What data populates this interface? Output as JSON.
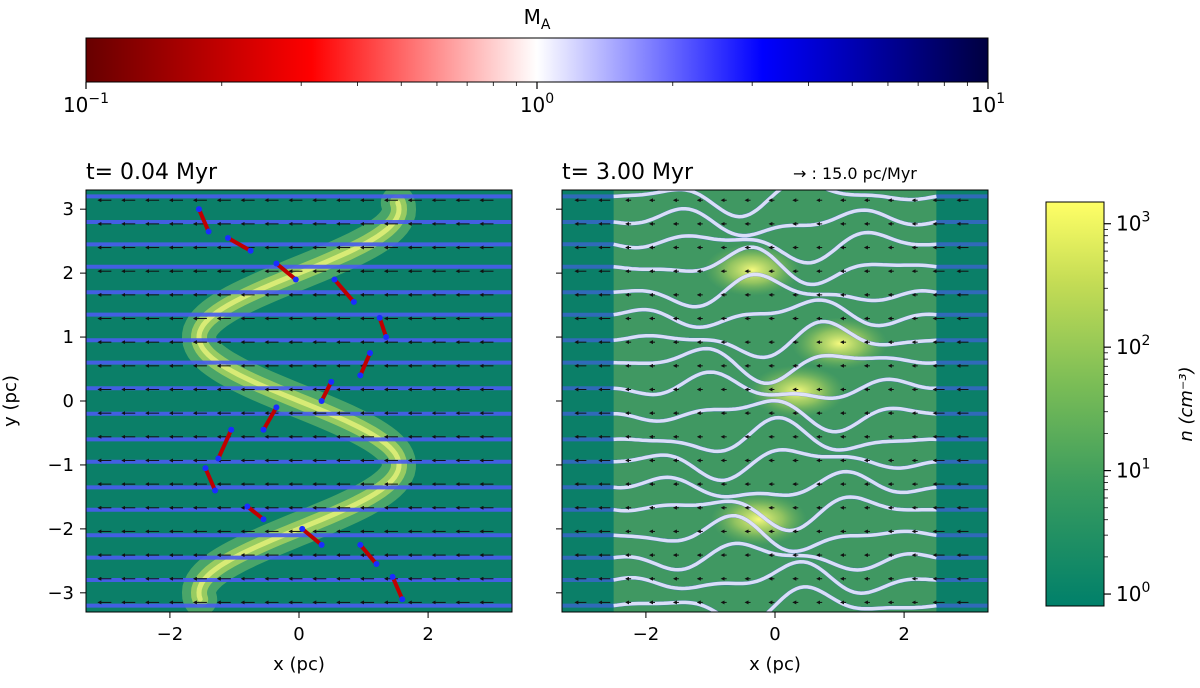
{
  "chart_data": [
    {
      "type": "colorbar",
      "label": "M",
      "label_sub": "A",
      "scale": "log",
      "range": [
        0.1,
        10
      ],
      "ticks": [
        {
          "base": "10",
          "exp": "−1",
          "value": 0.1
        },
        {
          "base": "10",
          "exp": "0",
          "value": 1
        },
        {
          "base": "10",
          "exp": "1",
          "value": 10
        }
      ],
      "colors": [
        "#670000",
        "#ff0000",
        "#ffffff",
        "#0000ff",
        "#000040"
      ]
    },
    {
      "type": "scatter",
      "title": "t= 0.04 Myr",
      "xlabel": "x (pc)",
      "ylabel": "y (pc)",
      "xlim": [
        -3.3,
        3.3
      ],
      "ylim": [
        -3.3,
        3.3
      ],
      "xticks": [
        -2,
        0,
        2
      ],
      "yticks": [
        -3,
        -2,
        -1,
        0,
        1,
        2,
        3
      ],
      "xtick_labels": [
        "−2",
        "0",
        "2"
      ],
      "ytick_labels": [
        "−3",
        "−2",
        "−1",
        "0",
        "1",
        "2",
        "3"
      ],
      "filament_curve": {
        "form": "x = -1.55*sin(pi*y/2)",
        "y_range": [
          -3.1,
          3.1
        ]
      },
      "field_lines_y": [
        -3.2,
        -2.8,
        -2.45,
        -2.1,
        -1.7,
        -1.35,
        -0.95,
        -0.6,
        -0.2,
        0.2,
        0.6,
        0.95,
        1.35,
        1.7,
        2.1,
        2.45,
        2.8,
        3.2
      ],
      "arrow_grid": {
        "x_step": 0.37,
        "y_step": 0.37,
        "direction": "-x"
      },
      "red_segments": [
        {
          "x": [
            -1.55,
            -1.4
          ],
          "y": [
            3.0,
            2.65
          ]
        },
        {
          "x": [
            -1.1,
            -0.75
          ],
          "y": [
            2.55,
            2.35
          ]
        },
        {
          "x": [
            -0.35,
            -0.05
          ],
          "y": [
            2.15,
            1.9
          ]
        },
        {
          "x": [
            0.55,
            0.85
          ],
          "y": [
            1.9,
            1.55
          ]
        },
        {
          "x": [
            1.25,
            1.35
          ],
          "y": [
            1.3,
            1.0
          ]
        },
        {
          "x": [
            1.1,
            0.95
          ],
          "y": [
            0.75,
            0.4
          ]
        },
        {
          "x": [
            0.5,
            0.35
          ],
          "y": [
            0.3,
            0.0
          ]
        },
        {
          "x": [
            -0.35,
            -0.55
          ],
          "y": [
            -0.1,
            -0.45
          ]
        },
        {
          "x": [
            -1.05,
            -1.25
          ],
          "y": [
            -0.45,
            -0.9
          ]
        },
        {
          "x": [
            -1.45,
            -1.3
          ],
          "y": [
            -1.05,
            -1.4
          ]
        },
        {
          "x": [
            -0.8,
            -0.55
          ],
          "y": [
            -1.65,
            -1.85
          ]
        },
        {
          "x": [
            0.05,
            0.35
          ],
          "y": [
            -2.0,
            -2.25
          ]
        },
        {
          "x": [
            0.95,
            1.2
          ],
          "y": [
            -2.25,
            -2.55
          ]
        },
        {
          "x": [
            1.45,
            1.6
          ],
          "y": [
            -2.75,
            -3.1
          ]
        }
      ]
    },
    {
      "type": "scatter",
      "title": "t= 3.00 Myr",
      "xlabel": "x (pc)",
      "xlim": [
        -3.3,
        3.3
      ],
      "ylim": [
        -3.3,
        3.3
      ],
      "xticks": [
        -2,
        0,
        2
      ],
      "xtick_labels": [
        "−2",
        "0",
        "2"
      ],
      "quiver_key": "→ : 15.0 pc/Myr",
      "field_lines_y": [
        -3.2,
        -2.8,
        -2.45,
        -2.1,
        -1.7,
        -1.35,
        -0.95,
        -0.6,
        -0.2,
        0.2,
        0.6,
        0.95,
        1.35,
        1.7,
        2.1,
        2.45,
        2.8,
        3.2
      ],
      "disturbed_x_range": [
        -2.5,
        2.5
      ],
      "dense_clumps": [
        {
          "x": -0.35,
          "y": 2.05
        },
        {
          "x": 0.35,
          "y": 0.15
        },
        {
          "x": -0.25,
          "y": -1.85
        },
        {
          "x": 1.0,
          "y": 0.9
        }
      ]
    },
    {
      "type": "colorbar",
      "label": "n (cm⁻³)",
      "scale": "log",
      "range": [
        0.8,
        1500
      ],
      "ticks": [
        {
          "base": "10",
          "exp": "0",
          "value": 1
        },
        {
          "base": "10",
          "exp": "1",
          "value": 10
        },
        {
          "base": "10",
          "exp": "2",
          "value": 100
        },
        {
          "base": "10",
          "exp": "3",
          "value": 1000
        }
      ],
      "colors": [
        "#00806a",
        "#3a9c5e",
        "#7bbd56",
        "#c4dc55",
        "#ffff66"
      ]
    }
  ]
}
